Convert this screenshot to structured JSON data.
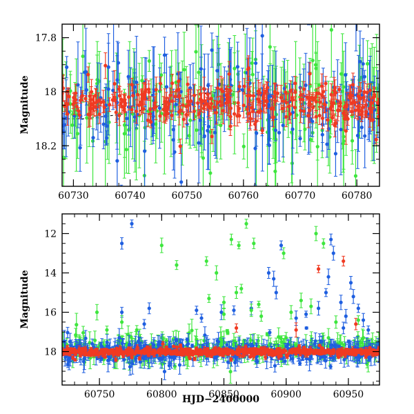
{
  "colors": {
    "blue": "#1f5fe0",
    "green": "#3ee63e",
    "red": "#f03a22",
    "model": "#000000"
  },
  "chart_data": [
    {
      "type": "scatter",
      "title": "",
      "xlabel": "",
      "ylabel": "Magnitude",
      "xlim": [
        60728,
        60784
      ],
      "ylim": [
        18.35,
        17.75
      ],
      "y_inverted": true,
      "xticks": [
        60730,
        60740,
        60750,
        60760,
        60770,
        60780
      ],
      "xtick_labels": [
        "60730",
        "60740",
        "60750",
        "60760",
        "60770",
        "60780"
      ],
      "yticks": [
        17.8,
        18,
        18.2
      ],
      "ytick_labels": [
        "17.8",
        "18",
        "18.2"
      ],
      "series": [
        {
          "name": "blue",
          "color": "blue",
          "n_points": 170,
          "base_mag": 18.05,
          "scatter": 0.11,
          "error_range": [
            0.02,
            0.18
          ]
        },
        {
          "name": "green",
          "color": "green",
          "n_points": 170,
          "base_mag": 18.05,
          "scatter": 0.13,
          "error_range": [
            0.03,
            0.22
          ]
        },
        {
          "name": "red",
          "color": "red",
          "n_points": 320,
          "base_mag": 18.04,
          "scatter": 0.045,
          "error_range": [
            0.01,
            0.05
          ]
        }
      ],
      "model_curve": {
        "x": [
          60728,
          60732,
          60736,
          60740,
          60744,
          60748,
          60752,
          60756,
          60760,
          60764,
          60768,
          60772,
          60776,
          60780,
          60784
        ],
        "y": [
          18.1,
          18.1,
          18.09,
          18.08,
          18.06,
          18.03,
          18.01,
          18.0,
          18.0,
          18.01,
          18.03,
          18.05,
          18.07,
          18.09,
          18.1
        ]
      }
    },
    {
      "type": "scatter",
      "title": "",
      "xlabel": "HJD−2400000",
      "ylabel": "Magnitude",
      "xlim": [
        60720,
        60975
      ],
      "ylim": [
        19.7,
        11.0
      ],
      "y_inverted": true,
      "xticks": [
        60750,
        60800,
        60850,
        60900,
        60950
      ],
      "xtick_labels": [
        "60750",
        "60800",
        "60850",
        "60900",
        "60950"
      ],
      "yticks": [
        12,
        14,
        16,
        18
      ],
      "ytick_labels": [
        "12",
        "14",
        "16",
        "18"
      ],
      "series": [
        {
          "name": "blue",
          "color": "blue",
          "n_points": 420,
          "base_mag": 18.0,
          "scatter": 0.28,
          "error_range": [
            0.05,
            0.6
          ]
        },
        {
          "name": "green",
          "color": "green",
          "n_points": 360,
          "base_mag": 17.85,
          "scatter": 0.35,
          "error_range": [
            0.05,
            0.6
          ]
        },
        {
          "name": "red",
          "color": "red",
          "n_points": 650,
          "base_mag": 18.02,
          "scatter": 0.1,
          "error_range": [
            0.02,
            0.15
          ]
        }
      ],
      "outliers": {
        "blue": [
          [
            60768,
            12.5
          ],
          [
            60776,
            11.5
          ],
          [
            60768,
            16.0
          ],
          [
            60786,
            16.6
          ],
          [
            60790,
            15.8
          ],
          [
            60828,
            15.9
          ],
          [
            60832,
            16.3
          ],
          [
            60848,
            16.0
          ],
          [
            60858,
            15.9
          ],
          [
            60872,
            15.8
          ],
          [
            60886,
            14.0
          ],
          [
            60890,
            14.3
          ],
          [
            60896,
            12.6
          ],
          [
            60892,
            15.0
          ],
          [
            60908,
            16.3
          ],
          [
            60916,
            16.1
          ],
          [
            60926,
            15.8
          ],
          [
            60932,
            15.0
          ],
          [
            60934,
            14.2
          ],
          [
            60936,
            12.3
          ],
          [
            60938,
            13.0
          ],
          [
            60944,
            15.5
          ],
          [
            60948,
            16.2
          ],
          [
            60952,
            14.5
          ],
          [
            60954,
            15.2
          ],
          [
            60958,
            15.8
          ],
          [
            60962,
            16.4
          ],
          [
            60966,
            16.9
          ],
          [
            60946,
            16.8
          ]
        ],
        "green": [
          [
            60748,
            16.0
          ],
          [
            60756,
            16.9
          ],
          [
            60768,
            16.5
          ],
          [
            60780,
            16.9
          ],
          [
            60800,
            12.6
          ],
          [
            60812,
            13.6
          ],
          [
            60836,
            13.4
          ],
          [
            60844,
            14.0
          ],
          [
            60850,
            15.5
          ],
          [
            60856,
            12.3
          ],
          [
            60862,
            12.6
          ],
          [
            60868,
            11.5
          ],
          [
            60874,
            12.5
          ],
          [
            60880,
            16.2
          ],
          [
            60860,
            15.0
          ],
          [
            60864,
            14.8
          ],
          [
            60872,
            15.9
          ],
          [
            60878,
            15.6
          ],
          [
            60898,
            13.0
          ],
          [
            60904,
            16.0
          ],
          [
            60912,
            15.4
          ],
          [
            60920,
            15.7
          ],
          [
            60924,
            12.0
          ],
          [
            60930,
            12.5
          ],
          [
            60940,
            16.5
          ],
          [
            60958,
            16.4
          ],
          [
            60838,
            15.3
          ],
          [
            60850,
            16.1
          ]
        ],
        "red": [
          [
            60926,
            13.8
          ],
          [
            60946,
            13.4
          ],
          [
            60956,
            16.6
          ],
          [
            60908,
            16.9
          ],
          [
            60860,
            16.8
          ]
        ]
      }
    }
  ]
}
